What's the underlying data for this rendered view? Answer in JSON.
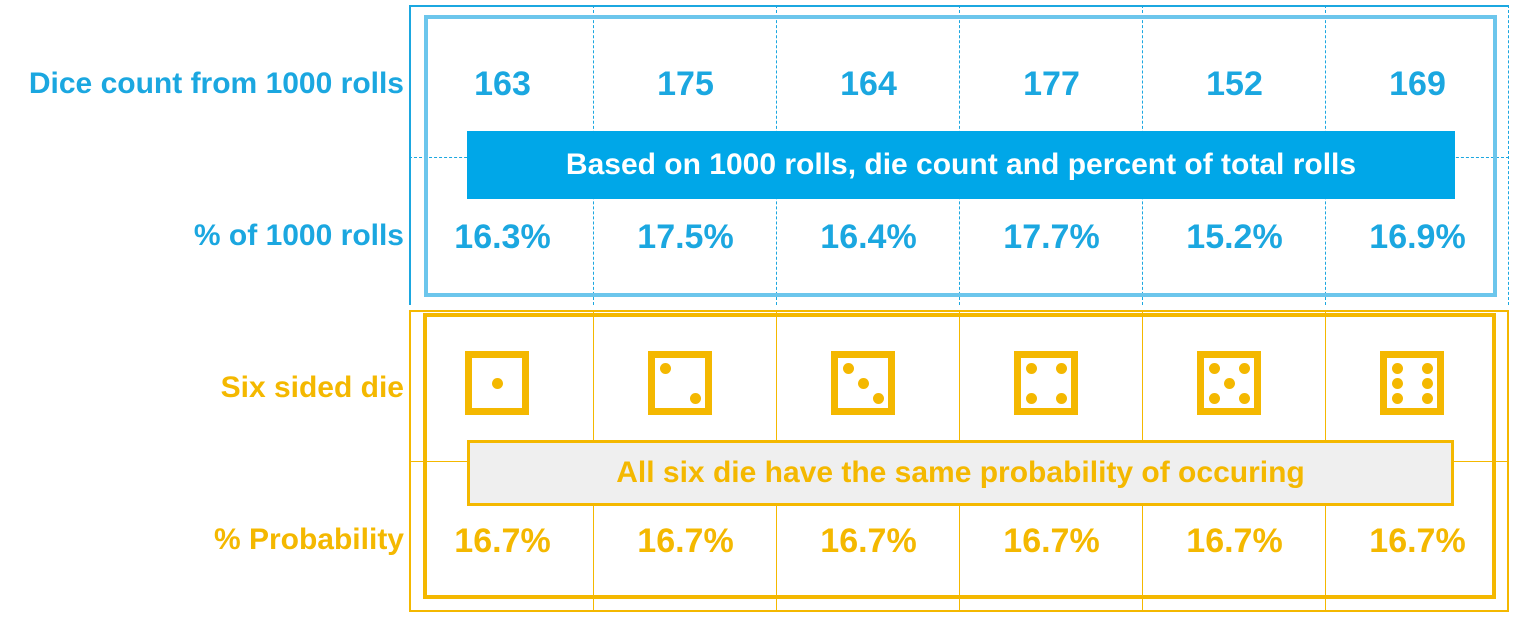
{
  "colors": {
    "blue": "#1BA7E0",
    "gold": "#F4B800",
    "banner_blue": "#00A7E8",
    "banner_gray": "#EFEFEF"
  },
  "rows": {
    "dice_count_label": "Dice count from 1000 rolls",
    "percent_label": "% of 1000 rolls",
    "die_label": "Six sided die",
    "probability_label": "% Probability"
  },
  "counts": [
    "163",
    "175",
    "164",
    "177",
    "152",
    "169"
  ],
  "percents": [
    "16.3%",
    "17.5%",
    "16.4%",
    "17.7%",
    "15.2%",
    "16.9%"
  ],
  "dice": [
    {
      "name": "die-one-icon",
      "pips": 1
    },
    {
      "name": "die-two-icon",
      "pips": 2
    },
    {
      "name": "die-three-icon",
      "pips": 3
    },
    {
      "name": "die-four-icon",
      "pips": 4
    },
    {
      "name": "die-five-icon",
      "pips": 5
    },
    {
      "name": "die-six-icon",
      "pips": 6
    }
  ],
  "probabilities": [
    "16.7%",
    "16.7%",
    "16.7%",
    "16.7%",
    "16.7%",
    "16.7%"
  ],
  "banners": {
    "rolls": "Based on 1000 rolls, die count and percent of total rolls",
    "probability": "All six die have the same probability of occuring"
  }
}
